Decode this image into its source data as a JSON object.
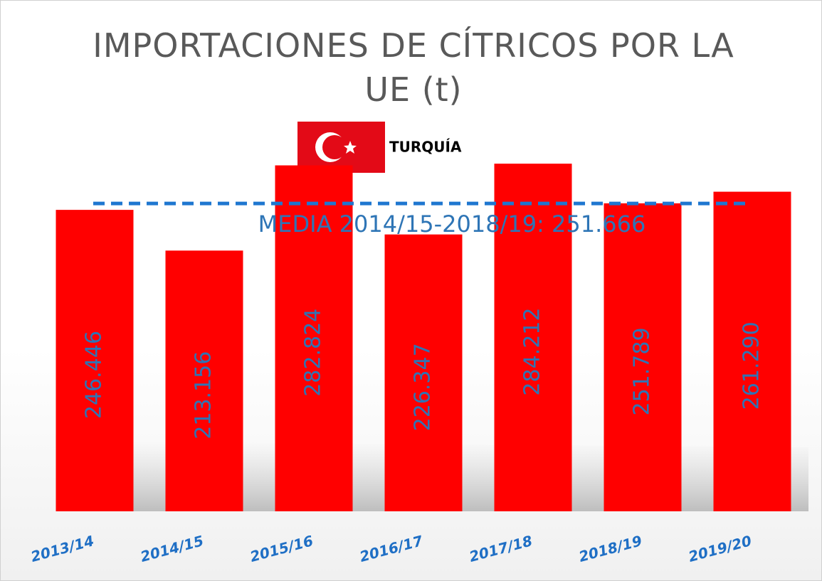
{
  "chart_data": {
    "type": "bar",
    "title": "IMPORTACIONES DE CÍTRICOS POR LA UE (t)",
    "categories": [
      "2013/14",
      "2014/15",
      "2015/16",
      "2016/17",
      "2017/18",
      "2018/19",
      "2019/20"
    ],
    "series": [
      {
        "name": "TURQUÍA",
        "color": "#ff0000",
        "values": [
          246446,
          213156,
          282824,
          226347,
          284212,
          251789,
          261290
        ],
        "value_labels": [
          "246.446",
          "213.156",
          "282.824",
          "226.347",
          "284.212",
          "251.789",
          "261.290"
        ]
      }
    ],
    "ylim": [
      0,
      300000
    ],
    "mean_line": {
      "value": 251666,
      "label": "MEDIA 2014/15-2018/19: 251.666",
      "color": "#1f77d0"
    }
  }
}
